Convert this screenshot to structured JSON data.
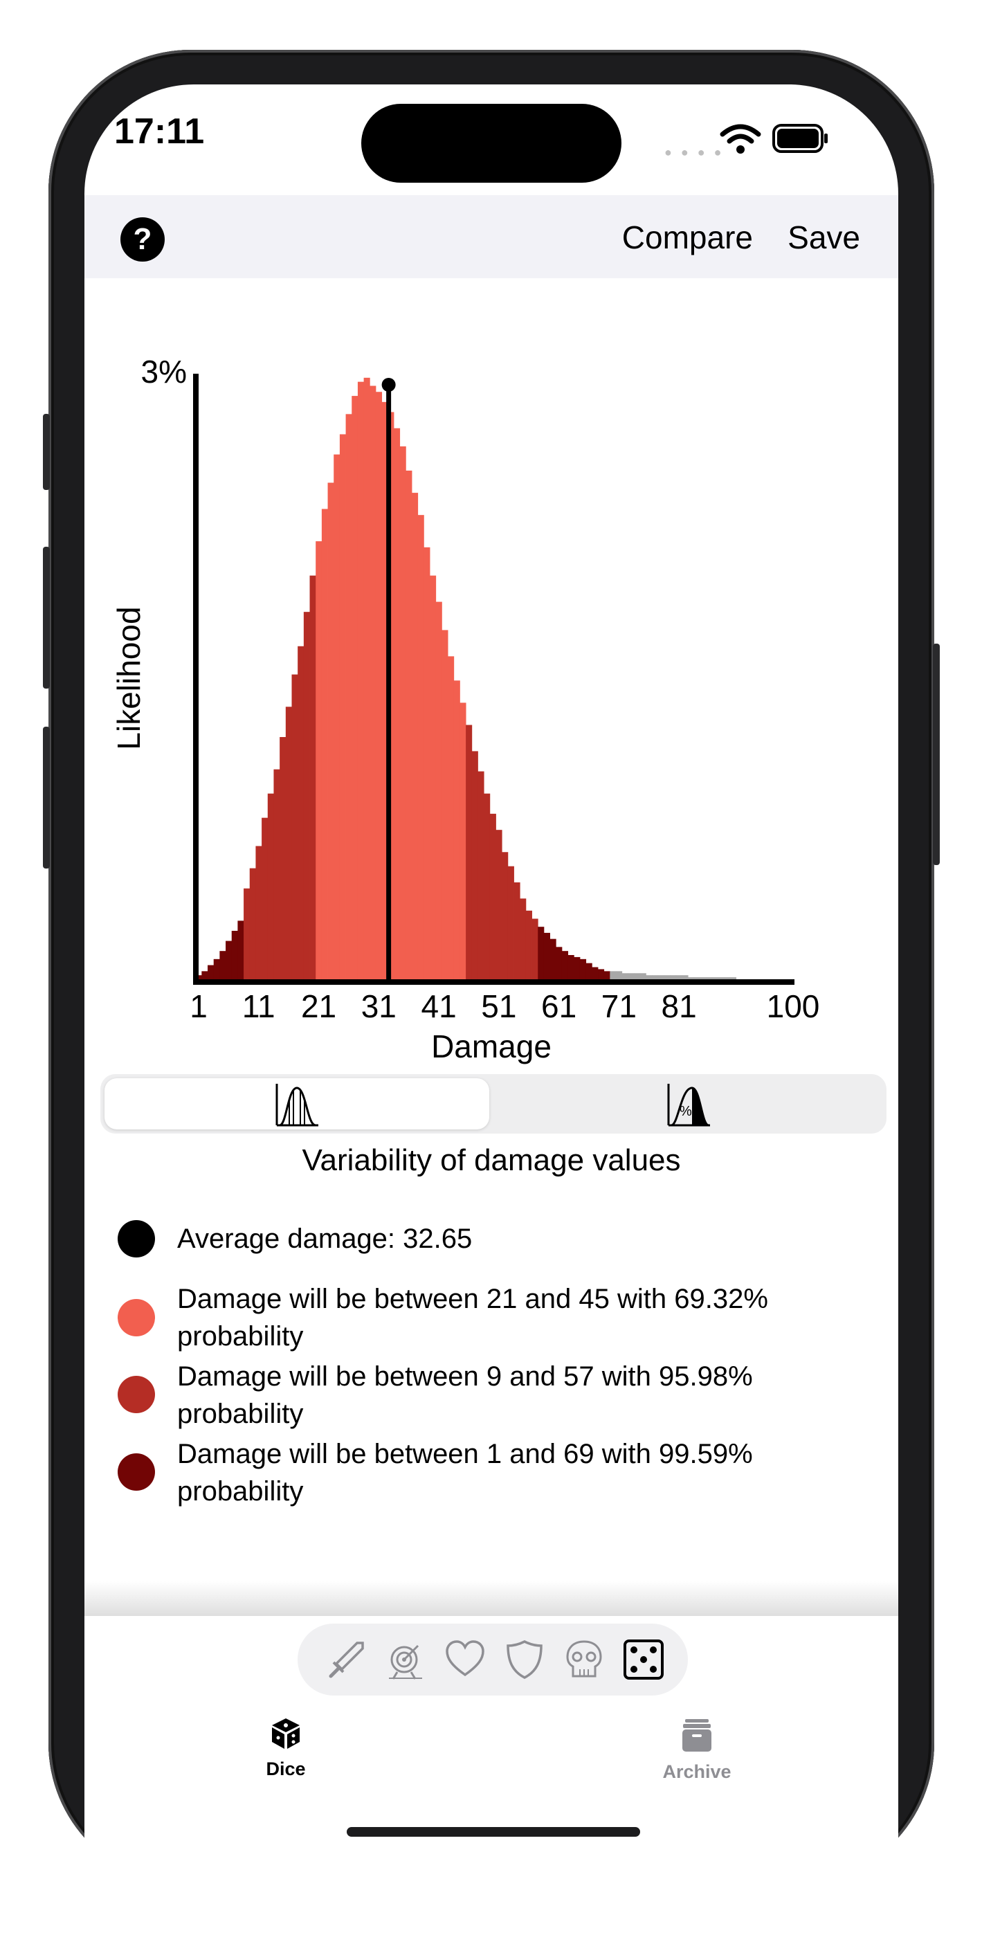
{
  "status_bar": {
    "time": "17:11"
  },
  "nav": {
    "help_label": "?",
    "compare_label": "Compare",
    "save_label": "Save"
  },
  "colors": {
    "band_1sigma": "#f25f4f",
    "band_2sigma": "#b52d25",
    "band_3sigma": "#720505",
    "tail": "#a8a8a8",
    "mean_line": "#000000"
  },
  "chart_data": {
    "type": "bar",
    "title": "",
    "xlabel": "Damage",
    "ylabel": "Likelihood",
    "y_max_label": "3%",
    "x_ticks": [
      "1",
      "11",
      "21",
      "31",
      "41",
      "51",
      "61",
      "71",
      "81",
      "100"
    ],
    "xlim": [
      1,
      100
    ],
    "ylim": [
      0,
      3
    ],
    "average": 32.65,
    "bands": [
      {
        "from": 21,
        "to": 45,
        "color_key": "band_1sigma"
      },
      {
        "from": 9,
        "to": 57,
        "color_key": "band_2sigma"
      },
      {
        "from": 1,
        "to": 69,
        "color_key": "band_3sigma"
      }
    ],
    "x": [
      1,
      2,
      3,
      4,
      5,
      6,
      7,
      8,
      9,
      10,
      11,
      12,
      13,
      14,
      15,
      16,
      17,
      18,
      19,
      20,
      21,
      22,
      23,
      24,
      25,
      26,
      27,
      28,
      29,
      30,
      31,
      32,
      33,
      34,
      35,
      36,
      37,
      38,
      39,
      40,
      41,
      42,
      43,
      44,
      45,
      46,
      47,
      48,
      49,
      50,
      51,
      52,
      53,
      54,
      55,
      56,
      57,
      58,
      59,
      60,
      61,
      62,
      63,
      64,
      65,
      66,
      67,
      68,
      69,
      70,
      71,
      72,
      73,
      74,
      75,
      76,
      77,
      78,
      79,
      80,
      81,
      82,
      83,
      84,
      85,
      86,
      87,
      88,
      89,
      90
    ],
    "values": [
      0.02,
      0.04,
      0.07,
      0.1,
      0.14,
      0.19,
      0.24,
      0.29,
      0.45,
      0.55,
      0.66,
      0.8,
      0.92,
      1.04,
      1.2,
      1.35,
      1.51,
      1.65,
      1.82,
      2.0,
      2.17,
      2.33,
      2.46,
      2.6,
      2.7,
      2.8,
      2.89,
      2.96,
      2.98,
      2.94,
      2.91,
      2.86,
      2.81,
      2.73,
      2.64,
      2.52,
      2.41,
      2.3,
      2.14,
      2.0,
      1.87,
      1.73,
      1.6,
      1.48,
      1.37,
      1.26,
      1.13,
      1.03,
      0.92,
      0.82,
      0.74,
      0.63,
      0.56,
      0.48,
      0.4,
      0.34,
      0.3,
      0.26,
      0.23,
      0.2,
      0.16,
      0.14,
      0.12,
      0.11,
      0.1,
      0.08,
      0.06,
      0.05,
      0.04,
      0.04,
      0.04,
      0.03,
      0.03,
      0.03,
      0.03,
      0.02,
      0.02,
      0.02,
      0.02,
      0.02,
      0.02,
      0.02,
      0.01,
      0.01,
      0.01,
      0.01,
      0.01,
      0.01,
      0.01,
      0.01
    ]
  },
  "segments": [
    {
      "icon": "distribution-chart-icon",
      "selected": true
    },
    {
      "icon": "percentile-chart-icon",
      "selected": false
    }
  ],
  "caption": "Variability of damage values",
  "legend": [
    {
      "text": "Average damage: 32.65",
      "color": "#000000"
    },
    {
      "text": "Damage will be between 21 and 45 with 69.32% probability",
      "color": "#f25f4f"
    },
    {
      "text": "Damage will be between 9  and 57 with 95.98% probability",
      "color": "#b52d25"
    },
    {
      "text": "Damage will be between 1  and 69 with 99.59% probability",
      "color": "#720505"
    }
  ],
  "categories": [
    "sword-icon",
    "target-icon",
    "heart-icon",
    "shield-icon",
    "skull-icon",
    "dice-icon"
  ],
  "tabs": [
    {
      "label": "Dice",
      "icon": "dice-icon",
      "active": true
    },
    {
      "label": "Archive",
      "icon": "archive-box-icon",
      "active": false
    }
  ]
}
